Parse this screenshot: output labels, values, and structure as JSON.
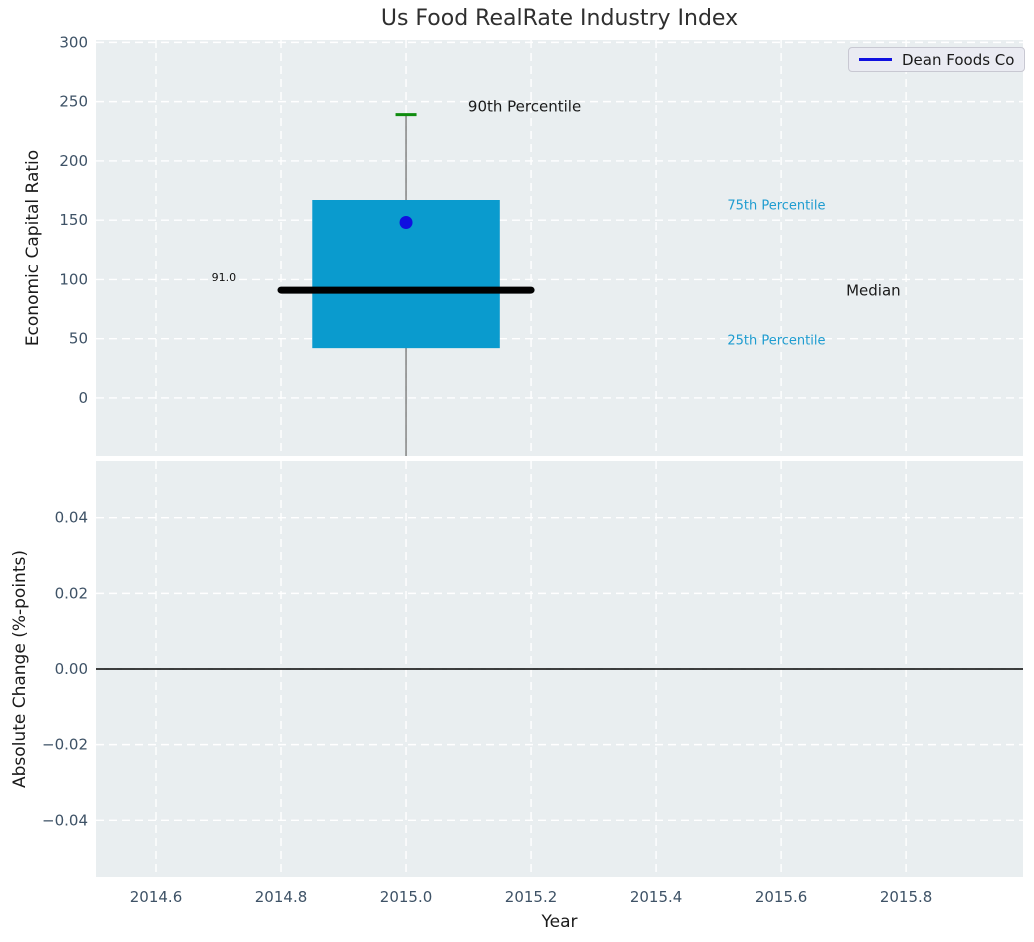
{
  "style": {
    "figure_background": "#ffffff",
    "axes_background": "#e9eef0",
    "grid_color": "#ffffff",
    "tick_label_color": "#3e5266",
    "series_color": "#1010e0"
  },
  "chart_data": [
    {
      "type": "boxplot",
      "title": "Us Food RealRate Industry Index",
      "ylabel": "Economic Capital Ratio",
      "legend": [
        "Dean Foods Co"
      ],
      "legend_position": "upper right",
      "grid": true,
      "xlim": [
        2014.504,
        2015.987
      ],
      "ylim": [
        -49,
        302
      ],
      "yticks": [
        300,
        250,
        200,
        150,
        100,
        50,
        0
      ],
      "xticks": [
        2014.6,
        2014.8,
        2015.0,
        2015.2,
        2015.4,
        2015.6,
        2015.8
      ],
      "box": {
        "x": 2015.0,
        "box_left": 2014.85,
        "box_right": 2015.15,
        "q1": 42,
        "q3": 167,
        "median": 91.0,
        "median_label": "91.0",
        "median_line_left": 2014.8,
        "median_line_right": 2015.2,
        "p90": 239,
        "whisker_bottom_clipped": true,
        "company_value": 148,
        "colors": {
          "box_fill": "#0a9bce",
          "median_line": "#000000",
          "whisker": "#7a7a7a",
          "p90_cap": "#0f8c0f",
          "company_marker": "#1010e0"
        }
      },
      "annotations": [
        {
          "text": "90th Percentile",
          "x": 2015.099,
          "y": 246,
          "align": "start",
          "color": "#1a1a1a",
          "size": 15
        },
        {
          "text": "75th Percentile",
          "x": 2015.514,
          "y": 163,
          "align": "start",
          "color": "#1e9cd0",
          "size": 13
        },
        {
          "text": "Median",
          "x": 2015.704,
          "y": 91,
          "align": "start",
          "color": "#1a1a1a",
          "size": 15
        },
        {
          "text": "25th Percentile",
          "x": 2015.514,
          "y": 49,
          "align": "start",
          "color": "#1e9cd0",
          "size": 13
        },
        {
          "text": "91.0",
          "x": 2014.689,
          "y": 102,
          "align": "start",
          "color": "#111111",
          "size": 11
        }
      ]
    },
    {
      "type": "line",
      "ylabel": "Absolute Change (%-points)",
      "xlabel": "Year",
      "grid": true,
      "xlim": [
        2014.504,
        2015.987
      ],
      "ylim": [
        -0.055,
        0.055
      ],
      "ytick_labels": [
        "0.04",
        "0.02",
        "0.00",
        "−0.02",
        "−0.04"
      ],
      "ytick_values": [
        0.04,
        0.02,
        0.0,
        -0.02,
        -0.04
      ],
      "xticks": [
        2014.6,
        2014.8,
        2015.0,
        2015.2,
        2015.4,
        2015.6,
        2015.8
      ],
      "xtick_labels": [
        "2014.6",
        "2014.8",
        "2015.0",
        "2015.2",
        "2015.4",
        "2015.6",
        "2015.8"
      ],
      "zero_line": 0.0,
      "series": []
    }
  ]
}
